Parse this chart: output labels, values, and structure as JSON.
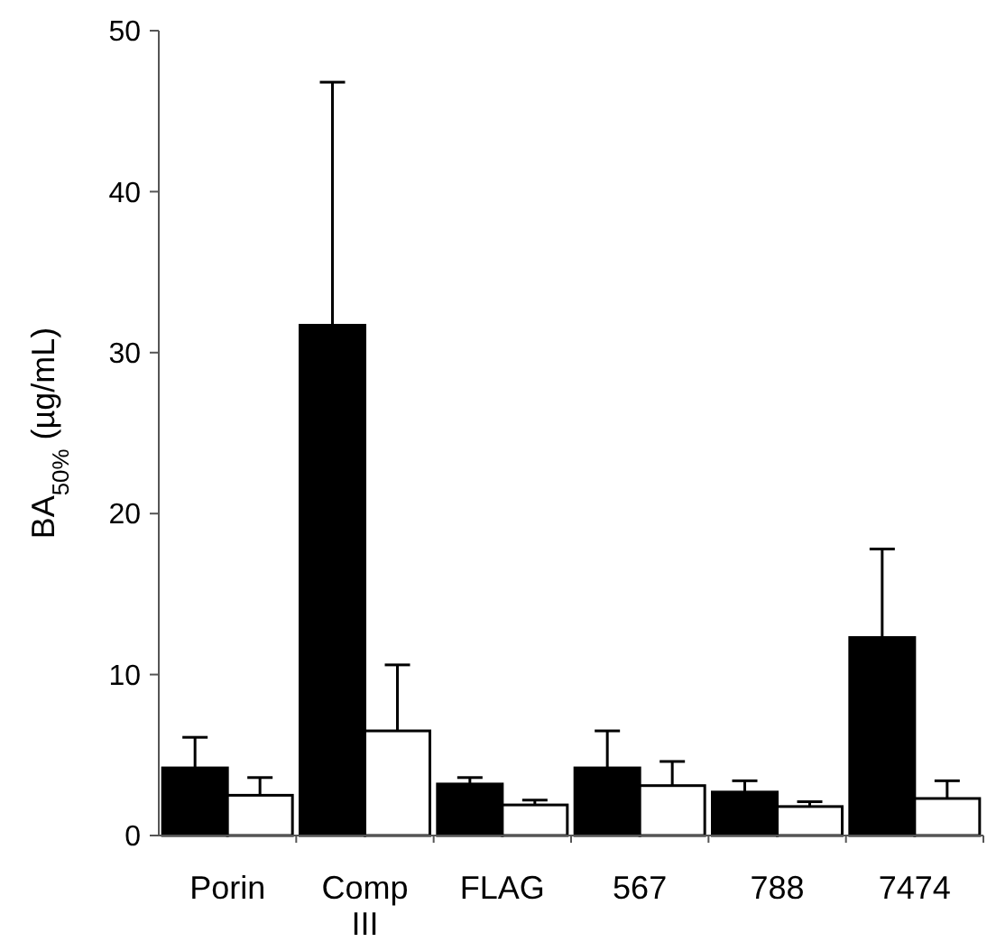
{
  "chart_data": {
    "type": "bar",
    "ylabel": "BA$_{50%}$ (µg/mL)",
    "categories": [
      "Porin",
      "Comp III",
      "FLAG",
      "567",
      "788",
      "7474"
    ],
    "series": [
      {
        "color": "#000000",
        "values": [
          4.2,
          31.7,
          3.2,
          4.2,
          2.7,
          12.3
        ],
        "errors": [
          [
            4.2,
            6.1
          ],
          [
            31.7,
            46.8
          ],
          [
            3.2,
            3.6
          ],
          [
            4.2,
            6.5
          ],
          [
            2.7,
            3.4
          ],
          [
            12.3,
            17.8
          ]
        ]
      },
      {
        "color": "#ffffff",
        "values": [
          2.5,
          6.5,
          1.9,
          3.1,
          1.8,
          2.3
        ],
        "errors": [
          [
            2.5,
            3.6
          ],
          [
            6.5,
            10.6
          ],
          [
            1.9,
            2.2
          ],
          [
            3.1,
            4.6
          ],
          [
            1.8,
            2.1
          ],
          [
            2.3,
            3.4
          ]
        ]
      }
    ],
    "ylim": [
      0,
      50
    ],
    "yticks": [
      0,
      10,
      20,
      30,
      40,
      50
    ],
    "grid": false
  }
}
